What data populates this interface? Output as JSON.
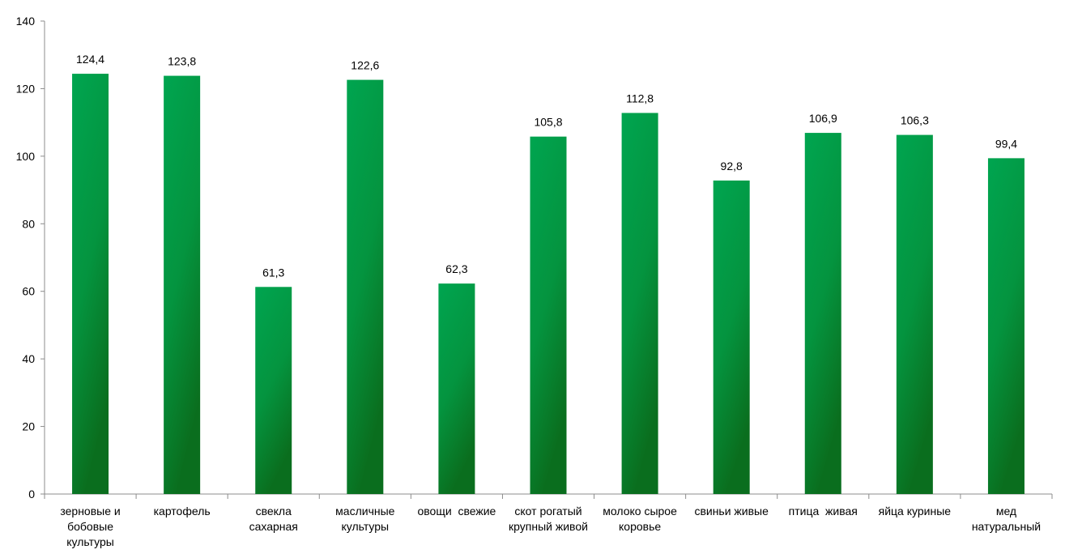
{
  "chart_data": {
    "type": "bar",
    "title": "",
    "xlabel": "",
    "ylabel": "",
    "ylim": [
      0,
      140
    ],
    "yticks": [
      0,
      20,
      40,
      60,
      80,
      100,
      120,
      140
    ],
    "grid": false,
    "legend": "none",
    "bar_color": "#00a550",
    "bar_color_dark": "#0a6e1e",
    "categories": [
      [
        "зерновые и",
        "бобовые",
        "культуры"
      ],
      [
        "картофель"
      ],
      [
        "свекла",
        "сахарная"
      ],
      [
        "масличные",
        "культуры"
      ],
      [
        "овощи  свежие"
      ],
      [
        "скот рогатый",
        "крупный живой"
      ],
      [
        "молоко сырое",
        "коровье"
      ],
      [
        "свиньи живые"
      ],
      [
        "птица  живая"
      ],
      [
        "яйца куриные"
      ],
      [
        "мед",
        "натуральный"
      ]
    ],
    "values": [
      124.4,
      123.8,
      61.3,
      122.6,
      62.3,
      105.8,
      112.8,
      92.8,
      106.9,
      106.3,
      99.4
    ],
    "value_labels": [
      "124,4",
      "123,8",
      "61,3",
      "122,6",
      "62,3",
      "105,8",
      "112,8",
      "92,8",
      "106,9",
      "106,3",
      "99,4"
    ]
  }
}
